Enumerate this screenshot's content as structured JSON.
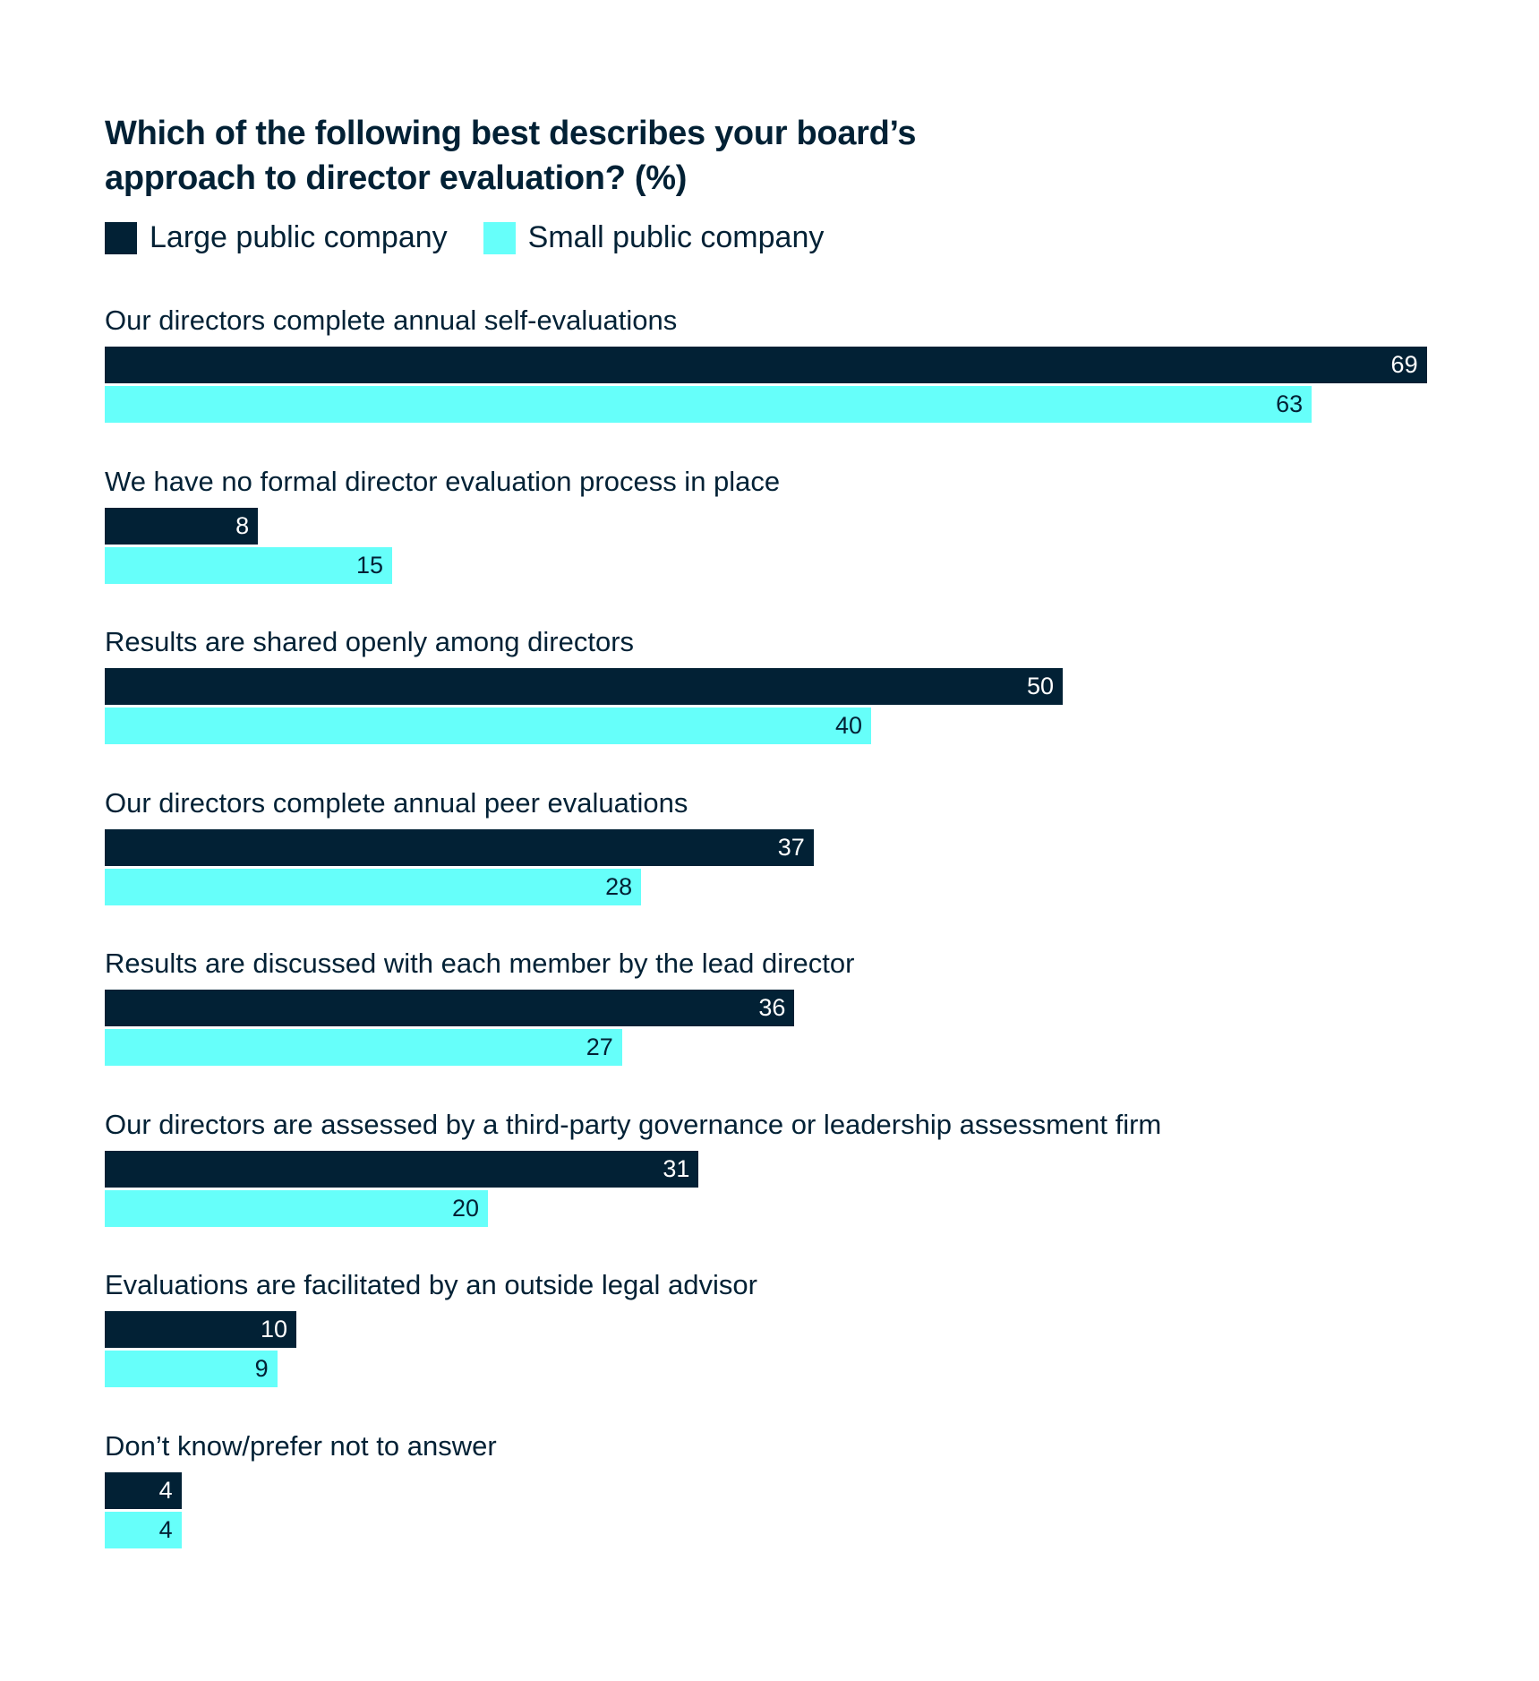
{
  "chart_data": {
    "type": "bar",
    "orientation": "horizontal",
    "title": "Which of the following best describes your board’s approach to director evaluation? (%)",
    "title_lines": [
      "Which of the following best describes your board’s",
      "approach to director evaluation? (%)"
    ],
    "categories": [
      "Our directors complete annual self-evaluations",
      "We have no formal director evaluation process in place",
      "Results are shared openly among directors",
      "Our directors complete annual peer evaluations",
      "Results are discussed with each member by the lead director",
      "Our directors are assessed by a third-party governance or leadership assessment firm",
      "Evaluations are facilitated by an outside legal advisor",
      "Don’t know/prefer not to answer"
    ],
    "series": [
      {
        "name": "Large public company",
        "color": "#022135",
        "label_color": "#ffffff",
        "values": [
          69,
          8,
          50,
          37,
          36,
          31,
          10,
          4
        ]
      },
      {
        "name": "Small public company",
        "color": "#66FFFA",
        "label_color": "#022135",
        "values": [
          63,
          15,
          40,
          28,
          27,
          20,
          9,
          4
        ]
      }
    ],
    "xlim": [
      0,
      69
    ],
    "grid": false,
    "legend_position": "top-left",
    "data_labels": true
  }
}
